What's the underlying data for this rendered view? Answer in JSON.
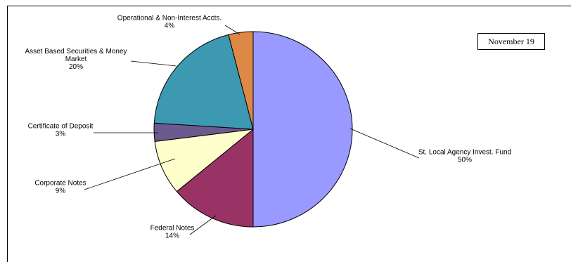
{
  "chart_data": {
    "type": "pie",
    "date_label": "November 19",
    "slices": [
      {
        "name": "St. Local Agency Invest. Fund",
        "value": 50,
        "label_lines": [
          "St. Local Agency Invest. Fund"
        ],
        "pct_label": "50%",
        "color": "#9999ff"
      },
      {
        "name": "Federal Notes",
        "value": 14,
        "label_lines": [
          "Federal Notes"
        ],
        "pct_label": "14%",
        "color": "#993366"
      },
      {
        "name": "Corporate Notes",
        "value": 9,
        "label_lines": [
          "Corporate Notes"
        ],
        "pct_label": "9%",
        "color": "#ffffcc"
      },
      {
        "name": "Certificate of Deposit",
        "value": 3,
        "label_lines": [
          "Certificate of Deposit"
        ],
        "pct_label": "3%",
        "color": "#6b5a8e"
      },
      {
        "name": "Asset Based Securities & Money Market",
        "value": 20,
        "label_lines": [
          "Asset Based Securities & Money",
          "Market"
        ],
        "pct_label": "20%",
        "color": "#3d98b2"
      },
      {
        "name": "Operational & Non-Interest Accts.",
        "value": 4,
        "label_lines": [
          "Operational & Non-Interest Accts."
        ],
        "pct_label": "4%",
        "color": "#dd8844"
      }
    ]
  }
}
